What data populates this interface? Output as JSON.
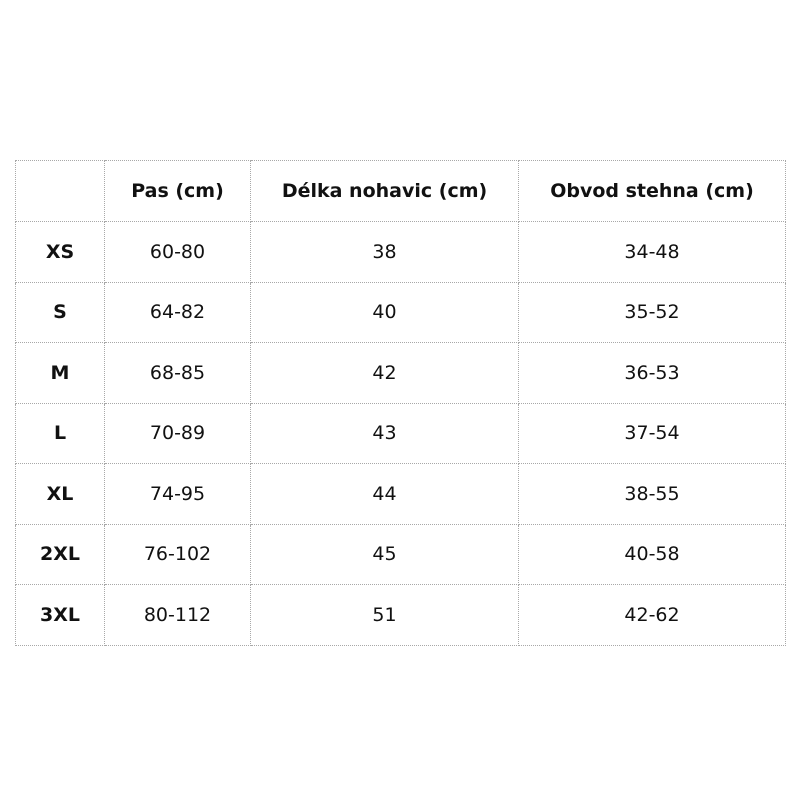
{
  "table": {
    "headers": [
      "",
      "Pas (cm)",
      "Délka nohavic (cm)",
      "Obvod stehna (cm)"
    ],
    "rows": [
      [
        "XS",
        "60-80",
        "38",
        "34-48"
      ],
      [
        "S",
        "64-82",
        "40",
        "35-52"
      ],
      [
        "M",
        "68-85",
        "42",
        "36-53"
      ],
      [
        "L",
        "70-89",
        "43",
        "37-54"
      ],
      [
        "XL",
        "74-95",
        "44",
        "38-55"
      ],
      [
        "2XL",
        "76-102",
        "45",
        "40-58"
      ],
      [
        "3XL",
        "80-112",
        "51",
        "42-62"
      ]
    ]
  }
}
